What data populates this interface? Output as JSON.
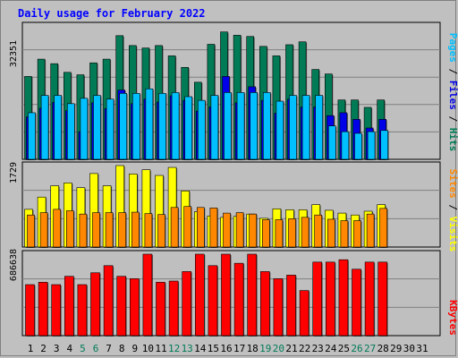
{
  "page": {
    "title": "Daily usage for February 2022"
  },
  "colors": {
    "background": "#c0c0c0",
    "plot_bg": "#bfbfbf",
    "hits": "#007b55",
    "files": "#0000e8",
    "pages": "#00c0ff",
    "visits": "#ffff00",
    "sites": "#ff8800",
    "kbytes": "#ff0000",
    "weekday_label": "#000000",
    "weekend_label": "#007b55",
    "gridline": "#808080",
    "title": "#0000ff"
  },
  "chart_data": [
    {
      "id": "hits-files-pages",
      "type": "bar",
      "title": "Daily usage for February 2022",
      "ytick_label": "32351",
      "ylim": [
        0,
        32351
      ],
      "grid": true,
      "legend": [
        {
          "label": "Hits",
          "color": "#007b55"
        },
        {
          "label": "Files",
          "color": "#0000e8"
        },
        {
          "label": "Pages",
          "color": "#00c0ff"
        }
      ],
      "categories": [
        "1",
        "2",
        "3",
        "4",
        "5",
        "6",
        "7",
        "8",
        "9",
        "10",
        "11",
        "12",
        "13",
        "14",
        "15",
        "16",
        "17",
        "18",
        "19",
        "20",
        "21",
        "22",
        "23",
        "24",
        "25",
        "26",
        "27",
        "28",
        "29",
        "30",
        "31"
      ],
      "weekend_days": [
        "5",
        "6",
        "12",
        "13",
        "19",
        "20",
        "26",
        "27"
      ],
      "series": [
        {
          "name": "Hits",
          "values": [
            20100,
            24300,
            23200,
            21100,
            20500,
            23400,
            24300,
            30000,
            27600,
            27000,
            27600,
            25100,
            22300,
            18700,
            27900,
            30900,
            30100,
            29800,
            27400,
            25100,
            27800,
            28500,
            21800,
            20700,
            14400,
            14400,
            12600,
            14400,
            0,
            0,
            0
          ]
        },
        {
          "name": "Files",
          "values": [
            10300,
            12400,
            13800,
            11800,
            6700,
            13700,
            12300,
            16800,
            13500,
            14600,
            13900,
            15400,
            14300,
            11700,
            12700,
            20100,
            13700,
            17600,
            14300,
            11200,
            14600,
            12700,
            12700,
            10600,
            11300,
            9700,
            7600,
            9700,
            0,
            0,
            0
          ]
        },
        {
          "name": "Pages",
          "values": [
            11300,
            15500,
            15500,
            13500,
            14800,
            15500,
            14600,
            16000,
            16000,
            17100,
            16000,
            16200,
            15200,
            14300,
            15500,
            16200,
            16200,
            16200,
            16200,
            14100,
            15500,
            15500,
            15500,
            8100,
            6700,
            6300,
            6700,
            7000,
            0,
            0,
            0
          ]
        }
      ]
    },
    {
      "id": "visits-sites",
      "type": "bar",
      "ytick_label": "1729",
      "ylim": [
        0,
        1729
      ],
      "grid": true,
      "legend": [
        {
          "label": "Visits",
          "color": "#ffff00"
        },
        {
          "label": "Sites",
          "color": "#ff8800"
        }
      ],
      "categories": [
        "1",
        "2",
        "3",
        "4",
        "5",
        "6",
        "7",
        "8",
        "9",
        "10",
        "11",
        "12",
        "13",
        "14",
        "15",
        "16",
        "17",
        "18",
        "19",
        "20",
        "21",
        "22",
        "23",
        "24",
        "25",
        "26",
        "27",
        "28",
        "29",
        "30",
        "31"
      ],
      "series": [
        {
          "name": "Visits",
          "values": [
            800,
            1060,
            1300,
            1360,
            1260,
            1560,
            1300,
            1790,
            1550,
            1640,
            1520,
            1690,
            1190,
            750,
            660,
            630,
            650,
            700,
            610,
            810,
            790,
            790,
            900,
            780,
            720,
            680,
            760,
            900,
            0,
            0,
            0
          ]
        },
        {
          "name": "Sites",
          "values": [
            680,
            730,
            800,
            770,
            700,
            730,
            730,
            730,
            740,
            710,
            690,
            840,
            860,
            840,
            830,
            720,
            730,
            700,
            580,
            580,
            600,
            630,
            680,
            590,
            560,
            560,
            700,
            820,
            0,
            0,
            0
          ]
        }
      ]
    },
    {
      "id": "kbytes",
      "type": "bar",
      "ytick_label": "686638",
      "ylim": [
        0,
        686638
      ],
      "grid": true,
      "legend": [
        {
          "label": "KBytes",
          "color": "#ff0000"
        }
      ],
      "categories": [
        "1",
        "2",
        "3",
        "4",
        "5",
        "6",
        "7",
        "8",
        "9",
        "10",
        "11",
        "12",
        "13",
        "14",
        "15",
        "16",
        "17",
        "18",
        "19",
        "20",
        "21",
        "22",
        "23",
        "24",
        "25",
        "26",
        "27",
        "28",
        "29",
        "30",
        "31"
      ],
      "series": [
        {
          "name": "KBytes",
          "values": [
            430000,
            450000,
            430000,
            500000,
            430000,
            530000,
            590000,
            500000,
            480000,
            690000,
            450000,
            460000,
            540000,
            690000,
            590000,
            690000,
            610000,
            690000,
            540000,
            480000,
            510000,
            380000,
            620000,
            620000,
            640000,
            560000,
            620000,
            620000,
            0,
            0,
            0
          ]
        }
      ]
    }
  ]
}
